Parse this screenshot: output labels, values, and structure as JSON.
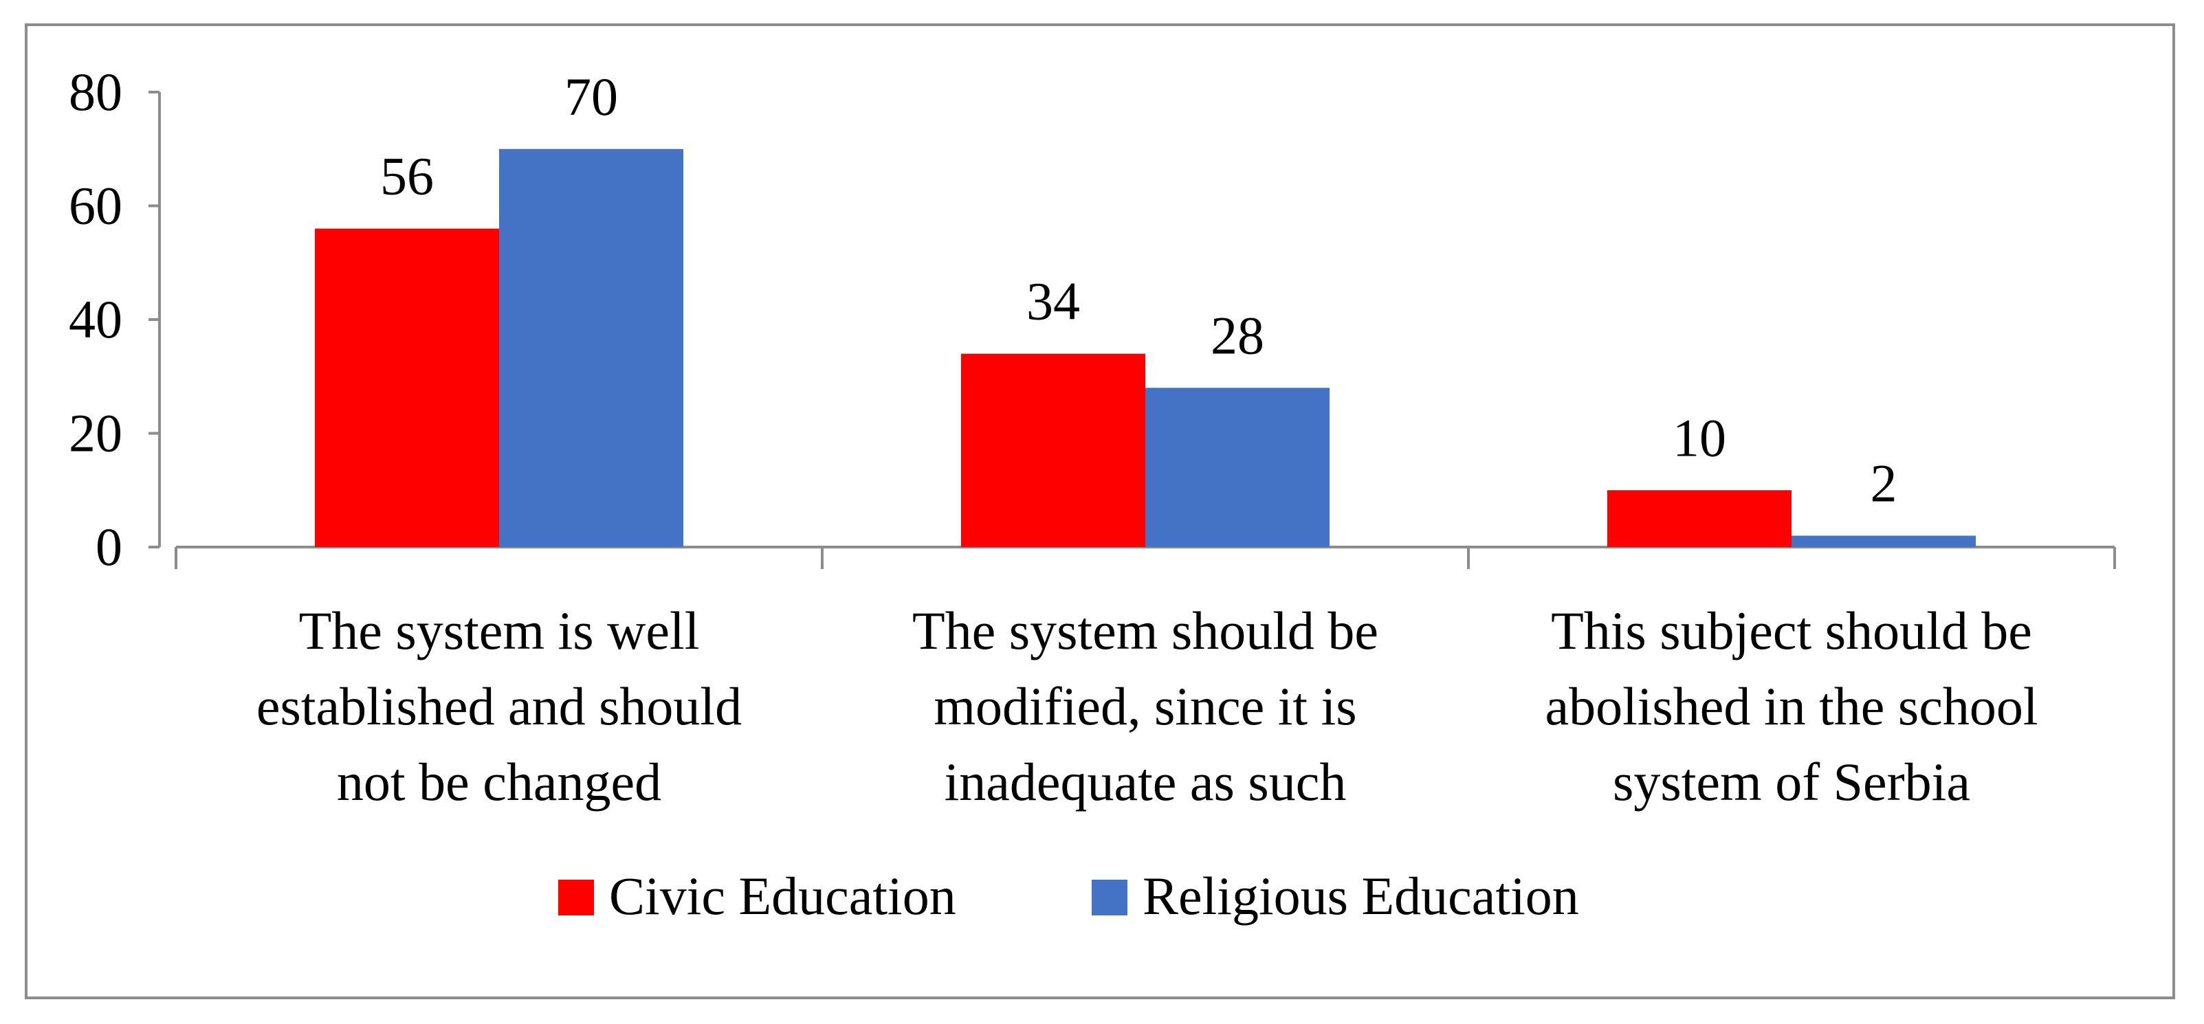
{
  "chart_data": {
    "type": "bar",
    "title": "",
    "xlabel": "",
    "ylabel": "",
    "ylim": [
      0,
      80
    ],
    "yticks": [
      0,
      20,
      40,
      60,
      80
    ],
    "grid": false,
    "legend_position": "bottom",
    "categories": [
      [
        "The system is well",
        "established and should",
        "not be changed"
      ],
      [
        "The system should be",
        "modified, since it is",
        "inadequate as such"
      ],
      [
        "This subject should be",
        "abolished in the school",
        "system of Serbia"
      ]
    ],
    "series": [
      {
        "name": "Civic Education",
        "color": "#ff0000",
        "values": [
          56,
          34,
          10
        ]
      },
      {
        "name": "Religious Education",
        "color": "#4472c4",
        "values": [
          70,
          28,
          2
        ]
      }
    ]
  }
}
